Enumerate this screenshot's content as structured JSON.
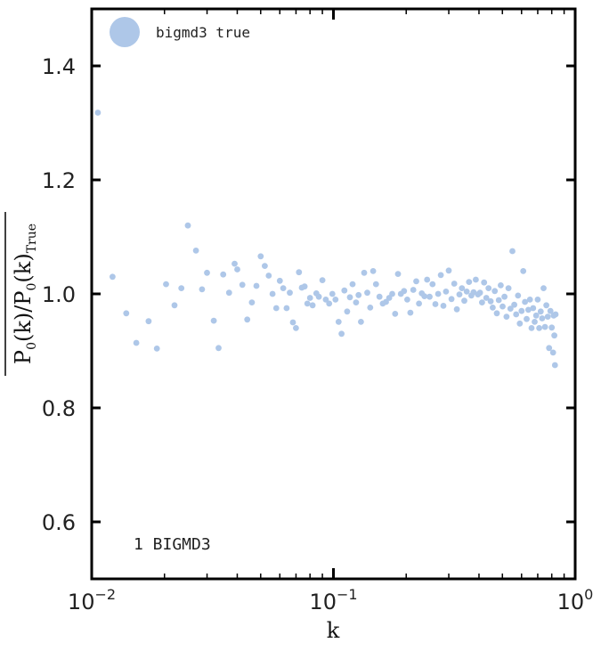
{
  "chart_data": {
    "type": "scatter",
    "title": "",
    "xlabel": "k",
    "ylabel": "P0(k)/P0(k)True",
    "ylabel_main": "P",
    "ylabel_sub0": "0",
    "ylabel_mid": "(k)/P",
    "ylabel_sub1": "0",
    "ylabel_end": "(k)",
    "ylabel_subTrue": "True",
    "xscale": "log",
    "xlim": [
      0.01,
      1
    ],
    "ylim": [
      0.5,
      1.5
    ],
    "x_ticks": [
      {
        "value": 0.01,
        "base": "10",
        "exp": "−2"
      },
      {
        "value": 0.1,
        "base": "10",
        "exp": "−1"
      },
      {
        "value": 1,
        "base": "10",
        "exp": "0"
      }
    ],
    "y_ticks": [
      {
        "value": 0.6,
        "label": "0.6"
      },
      {
        "value": 0.8,
        "label": "0.8"
      },
      {
        "value": 1.0,
        "label": "1.0"
      },
      {
        "value": 1.2,
        "label": "1.2"
      },
      {
        "value": 1.4,
        "label": "1.4"
      }
    ],
    "grid": false,
    "legend_position": "top-left",
    "series": [
      {
        "name": "bigmd3 true",
        "color": "#aec7e8",
        "points": [
          [
            0.0106,
            1.318
          ],
          [
            0.0122,
            1.03
          ],
          [
            0.0139,
            0.966
          ],
          [
            0.0153,
            0.914
          ],
          [
            0.0172,
            0.952
          ],
          [
            0.0186,
            0.904
          ],
          [
            0.0203,
            1.017
          ],
          [
            0.022,
            0.98
          ],
          [
            0.0235,
            1.01
          ],
          [
            0.025,
            1.12
          ],
          [
            0.027,
            1.076
          ],
          [
            0.0286,
            1.008
          ],
          [
            0.03,
            1.037
          ],
          [
            0.032,
            0.953
          ],
          [
            0.0335,
            0.905
          ],
          [
            0.035,
            1.034
          ],
          [
            0.037,
            1.002
          ],
          [
            0.039,
            1.053
          ],
          [
            0.04,
            1.043
          ],
          [
            0.042,
            1.016
          ],
          [
            0.044,
            0.955
          ],
          [
            0.046,
            0.985
          ],
          [
            0.048,
            1.014
          ],
          [
            0.05,
            1.066
          ],
          [
            0.052,
            1.049
          ],
          [
            0.054,
            1.032
          ],
          [
            0.056,
            1.0
          ],
          [
            0.058,
            0.975
          ],
          [
            0.06,
            1.023
          ],
          [
            0.062,
            1.01
          ],
          [
            0.064,
            0.975
          ],
          [
            0.066,
            1.002
          ],
          [
            0.068,
            0.95
          ],
          [
            0.07,
            0.94
          ],
          [
            0.072,
            1.038
          ],
          [
            0.074,
            1.011
          ],
          [
            0.076,
            1.013
          ],
          [
            0.078,
            0.983
          ],
          [
            0.08,
            0.993
          ],
          [
            0.082,
            0.98
          ],
          [
            0.085,
            1.001
          ],
          [
            0.087,
            0.995
          ],
          [
            0.09,
            1.024
          ],
          [
            0.093,
            0.99
          ],
          [
            0.096,
            0.983
          ],
          [
            0.099,
            1.0
          ],
          [
            0.102,
            0.99
          ],
          [
            0.105,
            0.951
          ],
          [
            0.108,
            0.93
          ],
          [
            0.111,
            1.006
          ],
          [
            0.114,
            0.969
          ],
          [
            0.117,
            0.994
          ],
          [
            0.12,
            1.017
          ],
          [
            0.124,
            0.985
          ],
          [
            0.127,
            0.998
          ],
          [
            0.13,
            0.951
          ],
          [
            0.134,
            1.037
          ],
          [
            0.138,
            1.002
          ],
          [
            0.142,
            0.976
          ],
          [
            0.146,
            1.04
          ],
          [
            0.15,
            1.017
          ],
          [
            0.155,
            0.995
          ],
          [
            0.16,
            0.983
          ],
          [
            0.165,
            0.986
          ],
          [
            0.17,
            0.993
          ],
          [
            0.175,
            1.0
          ],
          [
            0.18,
            0.965
          ],
          [
            0.185,
            1.035
          ],
          [
            0.19,
            1.0
          ],
          [
            0.196,
            1.005
          ],
          [
            0.202,
            0.99
          ],
          [
            0.208,
            0.967
          ],
          [
            0.214,
            1.007
          ],
          [
            0.22,
            1.022
          ],
          [
            0.226,
            0.983
          ],
          [
            0.232,
            1.001
          ],
          [
            0.238,
            0.996
          ],
          [
            0.244,
            1.025
          ],
          [
            0.25,
            0.995
          ],
          [
            0.257,
            1.017
          ],
          [
            0.264,
            0.982
          ],
          [
            0.271,
            1.0
          ],
          [
            0.278,
            1.033
          ],
          [
            0.285,
            0.979
          ],
          [
            0.292,
            1.004
          ],
          [
            0.3,
            1.041
          ],
          [
            0.308,
            0.991
          ],
          [
            0.316,
            1.018
          ],
          [
            0.324,
            0.973
          ],
          [
            0.332,
            0.999
          ],
          [
            0.34,
            1.01
          ],
          [
            0.348,
            0.988
          ],
          [
            0.356,
            1.004
          ],
          [
            0.364,
            1.021
          ],
          [
            0.372,
            0.997
          ],
          [
            0.38,
            1.003
          ],
          [
            0.388,
            1.025
          ],
          [
            0.396,
            0.999
          ],
          [
            0.404,
            1.002
          ],
          [
            0.412,
            0.985
          ],
          [
            0.42,
            1.02
          ],
          [
            0.429,
            0.993
          ],
          [
            0.438,
            1.01
          ],
          [
            0.447,
            0.987
          ],
          [
            0.456,
            0.976
          ],
          [
            0.465,
            1.005
          ],
          [
            0.474,
            0.966
          ],
          [
            0.483,
            0.989
          ],
          [
            0.492,
            1.015
          ],
          [
            0.501,
            0.978
          ],
          [
            0.51,
            0.995
          ],
          [
            0.52,
            0.96
          ],
          [
            0.53,
            1.01
          ],
          [
            0.54,
            0.974
          ],
          [
            0.55,
            1.075
          ],
          [
            0.56,
            0.981
          ],
          [
            0.57,
            0.964
          ],
          [
            0.58,
            0.997
          ],
          [
            0.59,
            0.948
          ],
          [
            0.6,
            0.97
          ],
          [
            0.61,
            1.04
          ],
          [
            0.62,
            0.986
          ],
          [
            0.63,
            0.956
          ],
          [
            0.64,
            0.972
          ],
          [
            0.65,
            0.99
          ],
          [
            0.66,
            0.94
          ],
          [
            0.67,
            0.975
          ],
          [
            0.68,
            0.951
          ],
          [
            0.69,
            0.962
          ],
          [
            0.7,
            0.99
          ],
          [
            0.71,
            0.94
          ],
          [
            0.72,
            0.969
          ],
          [
            0.73,
            0.957
          ],
          [
            0.74,
            1.01
          ],
          [
            0.75,
            0.942
          ],
          [
            0.76,
            0.98
          ],
          [
            0.77,
            0.96
          ],
          [
            0.78,
            0.905
          ],
          [
            0.79,
            0.97
          ],
          [
            0.8,
            0.941
          ],
          [
            0.81,
            0.897
          ],
          [
            0.815,
            0.962
          ],
          [
            0.82,
            0.927
          ],
          [
            0.825,
            0.875
          ],
          [
            0.83,
            0.964
          ]
        ]
      }
    ],
    "annotation": "1 BIGMD3"
  }
}
